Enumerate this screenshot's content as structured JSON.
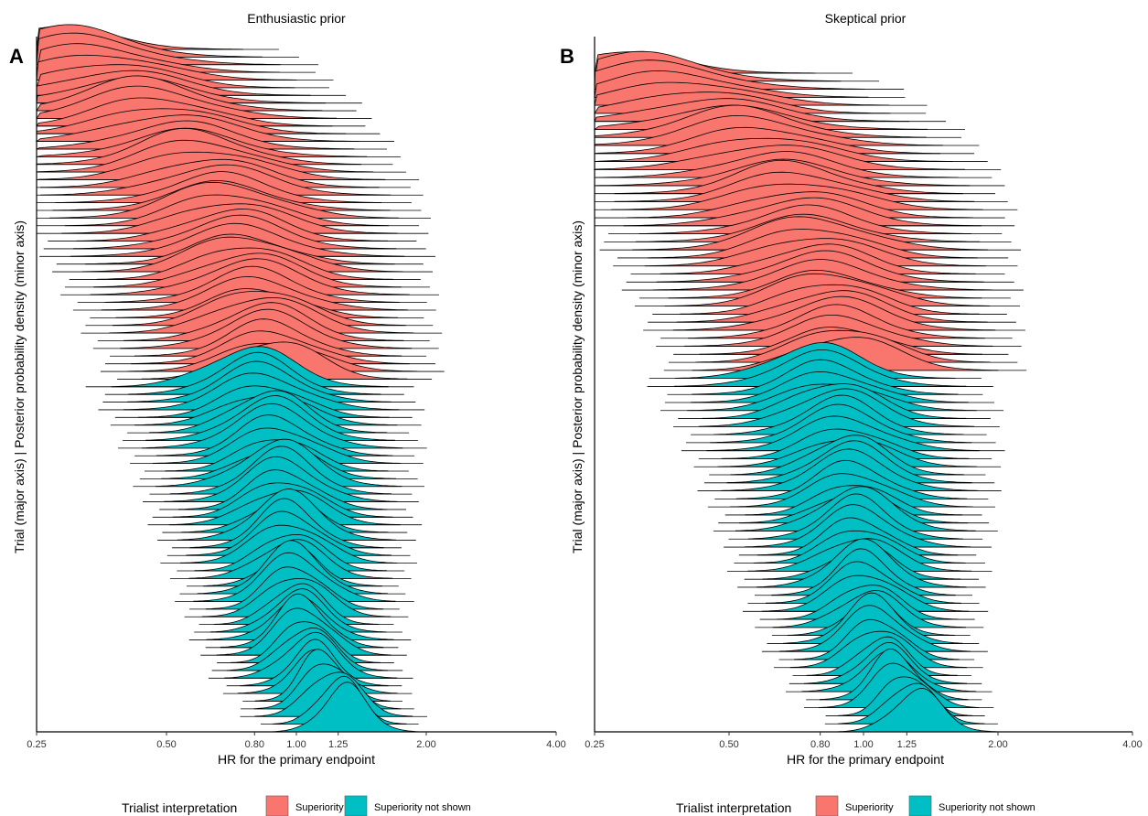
{
  "chart_data": [
    {
      "type": "ridgeline",
      "panel_label": "A",
      "title": "Enthusiastic prior",
      "xlabel": "HR for the primary endpoint",
      "ylabel": "Trial (major axis) | Posterior probability density (minor axis)",
      "x_scale": "log",
      "xlim": [
        0.25,
        4.0
      ],
      "xticks": [
        0.25,
        0.5,
        0.8,
        1.0,
        1.25,
        2.0,
        4.0
      ],
      "xtick_labels": [
        "0.25",
        "0.50",
        "0.80",
        "1.00",
        "1.25",
        "2.00",
        "4.00"
      ],
      "series": [
        {
          "name": "Superiority",
          "color": "#F8766D",
          "modes_hr": [
            0.27,
            0.29,
            0.31,
            0.33,
            0.35,
            0.37,
            0.39,
            0.41,
            0.43,
            0.45,
            0.47,
            0.49,
            0.51,
            0.53,
            0.55,
            0.57,
            0.59,
            0.61,
            0.63,
            0.65,
            0.66,
            0.67,
            0.68,
            0.69,
            0.7,
            0.71,
            0.72,
            0.73,
            0.74,
            0.75,
            0.76,
            0.77,
            0.78,
            0.79,
            0.8,
            0.81,
            0.82,
            0.83,
            0.84,
            0.85,
            0.86,
            0.87,
            0.88,
            0.89
          ]
        },
        {
          "name": "Superiority not shown",
          "color": "#00BFC4",
          "modes_hr": [
            0.78,
            0.8,
            0.82,
            0.83,
            0.84,
            0.85,
            0.86,
            0.87,
            0.88,
            0.89,
            0.9,
            0.9,
            0.91,
            0.91,
            0.92,
            0.92,
            0.93,
            0.93,
            0.94,
            0.94,
            0.95,
            0.95,
            0.96,
            0.96,
            0.97,
            0.97,
            0.98,
            0.98,
            0.99,
            0.99,
            1.0,
            1.0,
            1.01,
            1.02,
            1.03,
            1.04,
            1.05,
            1.06,
            1.08,
            1.1,
            1.12,
            1.15,
            1.18,
            1.22,
            1.26,
            1.3
          ]
        }
      ],
      "legend": {
        "title": "Trialist interpretation",
        "position": "bottom"
      }
    },
    {
      "type": "ridgeline",
      "panel_label": "B",
      "title": "Skeptical prior",
      "xlabel": "HR for the primary endpoint",
      "ylabel": "Trial (major axis) | Posterior probability density (minor axis)",
      "x_scale": "log",
      "xlim": [
        0.25,
        4.0
      ],
      "xticks": [
        0.25,
        0.5,
        0.8,
        1.0,
        1.25,
        2.0,
        4.0
      ],
      "xtick_labels": [
        "0.25",
        "0.50",
        "0.80",
        "1.00",
        "1.25",
        "2.00",
        "4.00"
      ],
      "series": [
        {
          "name": "Superiority",
          "color": "#F8766D",
          "modes_hr": [
            0.28,
            0.31,
            0.34,
            0.37,
            0.4,
            0.43,
            0.46,
            0.49,
            0.52,
            0.55,
            0.58,
            0.6,
            0.62,
            0.64,
            0.66,
            0.68,
            0.7,
            0.71,
            0.72,
            0.73,
            0.74,
            0.75,
            0.76,
            0.77,
            0.78,
            0.79,
            0.8,
            0.81,
            0.82,
            0.83,
            0.84,
            0.85,
            0.86,
            0.87,
            0.88,
            0.89,
            0.9,
            0.91
          ]
        },
        {
          "name": "Superiority not shown",
          "color": "#00BFC4",
          "modes_hr": [
            0.78,
            0.8,
            0.82,
            0.84,
            0.85,
            0.86,
            0.87,
            0.88,
            0.89,
            0.9,
            0.91,
            0.92,
            0.92,
            0.93,
            0.93,
            0.94,
            0.94,
            0.95,
            0.95,
            0.96,
            0.96,
            0.97,
            0.97,
            0.98,
            0.98,
            0.99,
            0.99,
            1.0,
            1.0,
            1.01,
            1.02,
            1.03,
            1.04,
            1.05,
            1.06,
            1.07,
            1.08,
            1.1,
            1.12,
            1.14,
            1.17,
            1.2,
            1.24,
            1.28,
            1.32
          ]
        }
      ],
      "legend": {
        "title": "Trialist interpretation",
        "position": "bottom"
      }
    }
  ],
  "legend": {
    "title": "Trialist interpretation",
    "items": [
      {
        "label": "Superiority",
        "color": "#F8766D"
      },
      {
        "label": "Superiority not shown",
        "color": "#00BFC4"
      }
    ]
  }
}
